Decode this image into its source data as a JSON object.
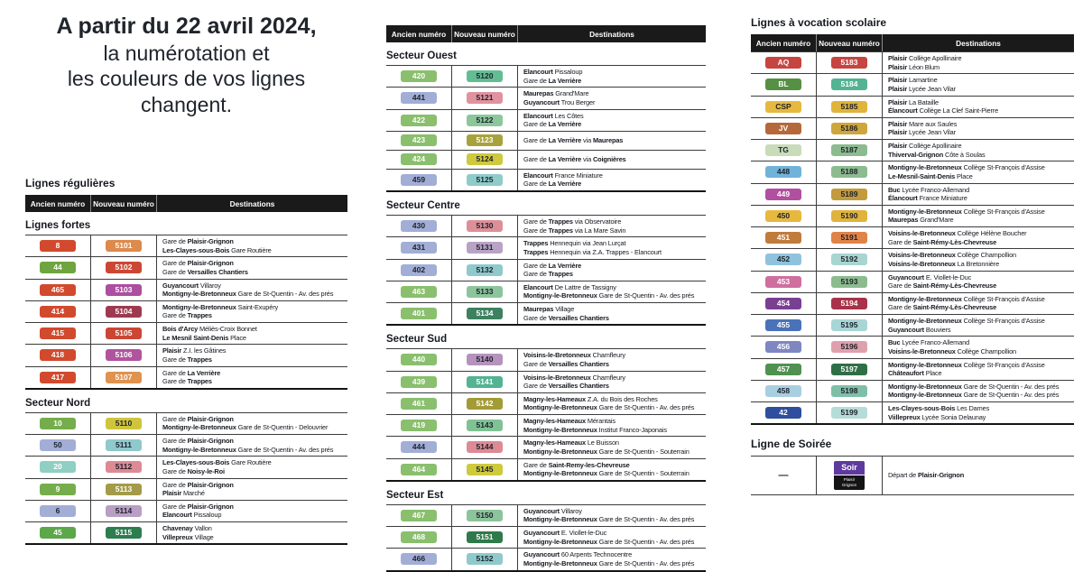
{
  "title": {
    "line1": "A partir du 22 avril 2024,",
    "line2": "la numérotation et",
    "line3": "les couleurs de vos lignes",
    "line4": "changent."
  },
  "headers": {
    "old": "Ancien numéro",
    "new": "Nouveau numéro",
    "dest": "Destinations"
  },
  "colors": {
    "header_bg": "#1a1a1a",
    "text": "#16191f",
    "dark_badge_text": "#1d222b"
  },
  "left_table": {
    "title": "Lignes régulières",
    "sections": [
      {
        "name": "Lignes fortes",
        "rows": [
          {
            "old": "8",
            "old_bg": "#d14a2e",
            "old_fg": "#ffffff",
            "new": "5101",
            "new_bg": "#dd8a4c",
            "new_fg": "#ffffff",
            "dest": [
              "Gare de **Plaisir-Grignon**",
              "**Les-Clayes-sous-Bois** Gare Routière"
            ]
          },
          {
            "old": "44",
            "old_bg": "#6fa53f",
            "old_fg": "#ffffff",
            "new": "5102",
            "new_bg": "#cb4734",
            "new_fg": "#ffffff",
            "dest": [
              "Gare de **Plaisir-Grignon**",
              "Gare de **Versailles Chantiers**"
            ]
          },
          {
            "old": "465",
            "old_bg": "#d14a2e",
            "old_fg": "#ffffff",
            "new": "5103",
            "new_bg": "#ab4f9e",
            "new_fg": "#ffffff",
            "dest": [
              "**Guyancourt** Villaroy",
              "**Montigny-le-Bretonneux** Gare de St-Quentin - Av. des prés"
            ]
          },
          {
            "old": "414",
            "old_bg": "#d14a2e",
            "old_fg": "#ffffff",
            "new": "5104",
            "new_bg": "#9e3a50",
            "new_fg": "#ffffff",
            "dest": [
              "**Montigny-le-Bretonneux** Saint-Exupéry",
              "Gare de **Trappes**"
            ]
          },
          {
            "old": "415",
            "old_bg": "#d14a2e",
            "old_fg": "#ffffff",
            "new": "5105",
            "new_bg": "#cb4734",
            "new_fg": "#ffffff",
            "dest": [
              "**Bois d'Arcy** Méliès-Croix Bonnet",
              "**Le Mesnil Saint-Denis** Place"
            ]
          },
          {
            "old": "418",
            "old_bg": "#d14a2e",
            "old_fg": "#ffffff",
            "new": "5106",
            "new_bg": "#b0549e",
            "new_fg": "#ffffff",
            "dest": [
              "**Plaisir** Z.I. les Gâtines",
              "Gare de **Trappes**"
            ]
          },
          {
            "old": "417",
            "old_bg": "#d14a2e",
            "old_fg": "#ffffff",
            "new": "5107",
            "new_bg": "#e0924f",
            "new_fg": "#ffffff",
            "dest": [
              "Gare de **La Verrière**",
              "Gare de **Trappes**"
            ]
          }
        ]
      },
      {
        "name": "Secteur Nord",
        "rows": [
          {
            "old": "10",
            "old_bg": "#75ad4c",
            "old_fg": "#ffffff",
            "new": "5110",
            "new_bg": "#cfc53d",
            "new_fg": "#1d222b",
            "dest": [
              "Gare de **Plaisir-Grignon**",
              "**Montigny-le-Bretonneux** Gare de St-Quentin - Delouvrier"
            ]
          },
          {
            "old": "50",
            "old_bg": "#a2aed6",
            "old_fg": "#1d222b",
            "new": "5111",
            "new_bg": "#8fc9cc",
            "new_fg": "#1d222b",
            "dest": [
              "Gare de **Plaisir-Grignon**",
              "**Montigny-le-Bretonneux** Gare de St-Quentin - Av. des prés"
            ]
          },
          {
            "old": "20",
            "old_bg": "#90cfc3",
            "old_fg": "#ffffff",
            "new": "5112",
            "new_bg": "#dd8a94",
            "new_fg": "#1d222b",
            "dest": [
              "**Les-Clayes-sous-Bois** Gare Routière",
              "Gare de **Noisy-le-Roi**"
            ]
          },
          {
            "old": "9",
            "old_bg": "#75ad4c",
            "old_fg": "#ffffff",
            "new": "5113",
            "new_bg": "#a39b48",
            "new_fg": "#ffffff",
            "dest": [
              "Gare de **Plaisir-Grignon**",
              "**Plaisir** Marché"
            ]
          },
          {
            "old": "6",
            "old_bg": "#a2aed6",
            "old_fg": "#1d222b",
            "new": "5114",
            "new_bg": "#b89fc4",
            "new_fg": "#1d222b",
            "dest": [
              "Gare de **Plaisir-Grignon**",
              "**Elancourt** Pissaloup"
            ]
          },
          {
            "old": "45",
            "old_bg": "#5ca74a",
            "old_fg": "#ffffff",
            "new": "5115",
            "new_bg": "#2e7d4f",
            "new_fg": "#ffffff",
            "dest": [
              "**Chavenay** Vallon",
              "**Villepreux** Village"
            ]
          }
        ]
      }
    ]
  },
  "middle_table": {
    "sections": [
      {
        "name": "Secteur Ouest",
        "rows": [
          {
            "old": "420",
            "old_bg": "#8abf6e",
            "old_fg": "#ffffff",
            "new": "5120",
            "new_bg": "#63bd93",
            "new_fg": "#1d222b",
            "dest": [
              "**Elancourt** Pissaloup",
              "Gare de **La Verrière**"
            ]
          },
          {
            "old": "441",
            "old_bg": "#a2aed6",
            "old_fg": "#1d222b",
            "new": "5121",
            "new_bg": "#e0939e",
            "new_fg": "#1d222b",
            "dest": [
              "**Maurepas** Grand'Mare",
              "**Guyancourt** Trou Berger"
            ]
          },
          {
            "old": "422",
            "old_bg": "#8abf6e",
            "old_fg": "#ffffff",
            "new": "5122",
            "new_bg": "#8cc79b",
            "new_fg": "#1d222b",
            "dest": [
              "**Elancourt** Les Côtes",
              "Gare de **La Verrière**"
            ]
          },
          {
            "old": "423",
            "old_bg": "#8abf6e",
            "old_fg": "#ffffff",
            "new": "5123",
            "new_bg": "#a8a23c",
            "new_fg": "#ffffff",
            "dest": [
              "Gare de **La Verrière** via **Maurepas**"
            ]
          },
          {
            "old": "424",
            "old_bg": "#8abf6e",
            "old_fg": "#ffffff",
            "new": "5124",
            "new_bg": "#cfc93d",
            "new_fg": "#1d222b",
            "dest": [
              "Gare de **La Verrière** via **Coignières**"
            ]
          },
          {
            "old": "459",
            "old_bg": "#a2aed6",
            "old_fg": "#1d222b",
            "new": "5125",
            "new_bg": "#8fcbc9",
            "new_fg": "#1d222b",
            "dest": [
              "**Elancourt** France Miniature",
              "Gare de **La Verrière**"
            ]
          }
        ]
      },
      {
        "name": "Secteur Centre",
        "rows": [
          {
            "old": "430",
            "old_bg": "#a2aed6",
            "old_fg": "#1d222b",
            "new": "5130",
            "new_bg": "#dd8f98",
            "new_fg": "#1d222b",
            "dest": [
              "Gare de **Trappes** via Observatoire",
              "Gare de **Trappes** via La Mare Savin"
            ]
          },
          {
            "old": "431",
            "old_bg": "#a2aed6",
            "old_fg": "#1d222b",
            "new": "5131",
            "new_bg": "#b8a3c4",
            "new_fg": "#1d222b",
            "dest": [
              "**Trappes** Hennequin via Jean Lurçat",
              "**Trappes** Hennequin via Z.A. Trappes - Elancourt"
            ]
          },
          {
            "old": "402",
            "old_bg": "#a2aed6",
            "old_fg": "#1d222b",
            "new": "5132",
            "new_bg": "#8fc9cc",
            "new_fg": "#1d222b",
            "dest": [
              "Gare de **La Verrière**",
              "Gare de **Trappes**"
            ]
          },
          {
            "old": "463",
            "old_bg": "#8abf6e",
            "old_fg": "#ffffff",
            "new": "5133",
            "new_bg": "#8cc49b",
            "new_fg": "#1d222b",
            "dest": [
              "**Elancourt** De Lattre de Tassigny",
              "**Montigny-le-Bretonneux** Gare de St-Quentin - Av. des prés"
            ]
          },
          {
            "old": "401",
            "old_bg": "#8abf6e",
            "old_fg": "#ffffff",
            "new": "5134",
            "new_bg": "#3d8160",
            "new_fg": "#ffffff",
            "dest": [
              "**Maurepas** Village",
              "Gare de **Versailles Chantiers**"
            ]
          }
        ]
      },
      {
        "name": "Secteur Sud",
        "rows": [
          {
            "old": "440",
            "old_bg": "#8abf6e",
            "old_fg": "#ffffff",
            "new": "5140",
            "new_bg": "#b593bd",
            "new_fg": "#1d222b",
            "dest": [
              "**Voisins-le-Bretonneux** Chamfleury",
              "Gare de **Versailles Chantiers**"
            ]
          },
          {
            "old": "439",
            "old_bg": "#8abf6e",
            "old_fg": "#ffffff",
            "new": "5141",
            "new_bg": "#53b392",
            "new_fg": "#ffffff",
            "dest": [
              "**Voisins-le-Bretonneux** Chamfleury",
              "Gare de **Versailles Chantiers**"
            ]
          },
          {
            "old": "461",
            "old_bg": "#8abf6e",
            "old_fg": "#ffffff",
            "new": "5142",
            "new_bg": "#a39b35",
            "new_fg": "#ffffff",
            "dest": [
              "**Magny-les-Hameaux** Z.A. du Bois des Roches",
              "**Montigny-le-Bretonneux** Gare de St-Quentin - Av. des prés"
            ]
          },
          {
            "old": "419",
            "old_bg": "#8abf6e",
            "old_fg": "#ffffff",
            "new": "5143",
            "new_bg": "#7fc394",
            "new_fg": "#1d222b",
            "dest": [
              "**Magny-les-Hameaux** Mérantais",
              "**Montigny-le-Bretonneux** Institut Franco-Japonais"
            ]
          },
          {
            "old": "444",
            "old_bg": "#a2aed6",
            "old_fg": "#1d222b",
            "new": "5144",
            "new_bg": "#dd8a94",
            "new_fg": "#1d222b",
            "dest": [
              "**Magny-les-Hameaux** Le Buisson",
              "**Montigny-le-Bretonneux** Gare de St-Quentin - Souterrain"
            ]
          },
          {
            "old": "464",
            "old_bg": "#8abf6e",
            "old_fg": "#ffffff",
            "new": "5145",
            "new_bg": "#cfc93d",
            "new_fg": "#1d222b",
            "dest": [
              "Gare de **Saint-Remy-les-Chevreuse**",
              "**Montigny-le-Bretonneux** Gare de St-Quentin - Souterrain"
            ]
          }
        ]
      },
      {
        "name": "Secteur Est",
        "rows": [
          {
            "old": "467",
            "old_bg": "#8abf6e",
            "old_fg": "#ffffff",
            "new": "5150",
            "new_bg": "#8cc49b",
            "new_fg": "#1d222b",
            "dest": [
              "**Guyancourt** Villaroy",
              "**Montigny-le-Bretonneux** Gare de St-Quentin - Av. des prés"
            ]
          },
          {
            "old": "468",
            "old_bg": "#8abf6e",
            "old_fg": "#ffffff",
            "new": "5151",
            "new_bg": "#2f7a4a",
            "new_fg": "#ffffff",
            "dest": [
              "**Guyancourt** E. Viollet-le-Duc",
              "**Montigny-le-Bretonneux** Gare de St-Quentin - Av. des prés"
            ]
          },
          {
            "old": "466",
            "old_bg": "#a2aed6",
            "old_fg": "#1d222b",
            "new": "5152",
            "new_bg": "#8fc9cc",
            "new_fg": "#1d222b",
            "dest": [
              "**Guyancourt** 60 Arpents Technocentre",
              "**Montigny-le-Bretonneux** Gare de St-Quentin - Av. des prés"
            ]
          }
        ]
      }
    ]
  },
  "right_table": {
    "title": "Lignes à vocation scolaire",
    "sections": [
      {
        "name": null,
        "rows": [
          {
            "old": "AQ",
            "old_bg": "#c64540",
            "old_fg": "#ffffff",
            "new": "5183",
            "new_bg": "#c64540",
            "new_fg": "#ffffff",
            "dest": [
              "**Plaisir** Collège Apollinaire",
              "**Plaisir** Léon Blum"
            ]
          },
          {
            "old": "BL",
            "old_bg": "#569044",
            "old_fg": "#ffffff",
            "new": "5184",
            "new_bg": "#53b392",
            "new_fg": "#ffffff",
            "dest": [
              "**Plaisir** Lamartine",
              "**Plaisir** Lycée Jean Vilar"
            ]
          },
          {
            "old": "CSP",
            "old_bg": "#e6b93e",
            "old_fg": "#1d222b",
            "new": "5185",
            "new_bg": "#e0b33c",
            "new_fg": "#1d222b",
            "dest": [
              "**Plaisir** La Bataille",
              "**Élancourt** Collège La Clef Saint-Pierre"
            ]
          },
          {
            "old": "JV",
            "old_bg": "#b5693a",
            "old_fg": "#ffffff",
            "new": "5186",
            "new_bg": "#cfa63c",
            "new_fg": "#1d222b",
            "dest": [
              "**Plaisir** Mare aux Saules",
              "**Plaisir** Lycée Jean Vilar"
            ]
          },
          {
            "old": "TG",
            "old_bg": "#c9dcb9",
            "old_fg": "#1d222b",
            "new": "5187",
            "new_bg": "#8cbb8f",
            "new_fg": "#1d222b",
            "dest": [
              "**Plaisir** Collège Apollinaire",
              "**Thiverval-Grignon** Côte à Soulas"
            ]
          },
          {
            "old": "448",
            "old_bg": "#6fb3da",
            "old_fg": "#1d222b",
            "new": "5188",
            "new_bg": "#8cbb8f",
            "new_fg": "#1d222b",
            "dest": [
              "**Montigny-le-Bretonneux** Collège St-François d'Assise",
              "**Le-Mesnil-Saint-Denis** Place"
            ]
          },
          {
            "old": "449",
            "old_bg": "#b0509e",
            "old_fg": "#ffffff",
            "new": "5189",
            "new_bg": "#c29b3f",
            "new_fg": "#1d222b",
            "dest": [
              "**Buc** Lycée Franco-Allemand",
              "**Élancourt** France Miniature"
            ]
          },
          {
            "old": "450",
            "old_bg": "#e6b93e",
            "old_fg": "#1d222b",
            "new": "5190",
            "new_bg": "#e0b33c",
            "new_fg": "#1d222b",
            "dest": [
              "**Montigny-le-Bretonneux** Collège St-François d'Assise",
              "**Maurepas** Grand'Mare"
            ]
          },
          {
            "old": "451",
            "old_bg": "#c07b3d",
            "old_fg": "#ffffff",
            "new": "5191",
            "new_bg": "#e08348",
            "new_fg": "#1d222b",
            "dest": [
              "**Voisins-le-Bretonneux** Collège Hélène Boucher",
              "Gare de **Saint-Rémy-Lès-Chevreuse**"
            ]
          },
          {
            "old": "452",
            "old_bg": "#8fc3dd",
            "old_fg": "#1d222b",
            "new": "5192",
            "new_bg": "#a8d5cf",
            "new_fg": "#1d222b",
            "dest": [
              "**Voisins-le-Bretonneux** Collège Champollion",
              "**Voisins-le-Bretonneux** La Bretonnière"
            ]
          },
          {
            "old": "453",
            "old_bg": "#ce6f9f",
            "old_fg": "#ffffff",
            "new": "5193",
            "new_bg": "#8cbb8f",
            "new_fg": "#1d222b",
            "dest": [
              "**Guyancourt** E. Viollet-le-Duc",
              "Gare de **Saint-Rémy-Lès-Chevreuse**"
            ]
          },
          {
            "old": "454",
            "old_bg": "#7a3f92",
            "old_fg": "#ffffff",
            "new": "5194",
            "new_bg": "#a83249",
            "new_fg": "#ffffff",
            "dest": [
              "**Montigny-le-Bretonneux** Collège St-François d'Assise",
              "Gare de **Saint-Rémy-Lès-Chevreuse**"
            ]
          },
          {
            "old": "455",
            "old_bg": "#4a72b8",
            "old_fg": "#ffffff",
            "new": "5195",
            "new_bg": "#a8d5d5",
            "new_fg": "#1d222b",
            "dest": [
              "**Montigny-le-Bretonneux** Collège St-François d'Assise",
              "**Guyancourt** Bouviers"
            ]
          },
          {
            "old": "456",
            "old_bg": "#7f86c1",
            "old_fg": "#ffffff",
            "new": "5196",
            "new_bg": "#dfa0ad",
            "new_fg": "#1d222b",
            "dest": [
              "**Buc** Lycée Franco-Allemand",
              "**Voisins-le-Bretonneux** Collège Champollion"
            ]
          },
          {
            "old": "457",
            "old_bg": "#4f9150",
            "old_fg": "#ffffff",
            "new": "5197",
            "new_bg": "#2f6f46",
            "new_fg": "#ffffff",
            "dest": [
              "**Montigny-le-Bretonneux** Collège St-François d'Assise",
              "**Châteaufort** Place"
            ]
          },
          {
            "old": "458",
            "old_bg": "#a8cfe0",
            "old_fg": "#1d222b",
            "new": "5198",
            "new_bg": "#7fbfa8",
            "new_fg": "#1d222b",
            "dest": [
              "**Montigny-le-Bretonneux** Gare de St-Quentin - Av. des prés",
              "**Montigny-le-Bretonneux** Gare de St-Quentin - Av. des prés"
            ]
          },
          {
            "old": "42",
            "old_bg": "#2f4e9e",
            "old_fg": "#ffffff",
            "new": "5199",
            "new_bg": "#b5dcd8",
            "new_fg": "#1d222b",
            "dest": [
              "**Les-Clayes-sous-Bois** Les Dames",
              "**Viillepreux** Lycée Sonia Delaunay"
            ]
          }
        ]
      }
    ]
  },
  "soiree": {
    "title": "Ligne de Soirée",
    "old_label": "—",
    "badge": {
      "top": "Soir",
      "line1": "Plaisir",
      "line2": "Grignon",
      "top_bg": "#5f3a9e",
      "bottom_bg": "#141414"
    },
    "destination": "Départ de **Plaisir-Grignon**"
  }
}
